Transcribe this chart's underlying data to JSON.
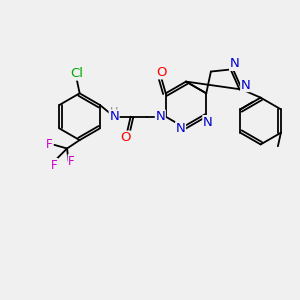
{
  "background_color": "#f0f0f0",
  "bond_color": "#000000",
  "atom_colors": {
    "N": "#0000cc",
    "O": "#ff0000",
    "Cl": "#00aa00",
    "F": "#cc00cc",
    "H": "#888888",
    "C": "#000000"
  },
  "font_size": 8.5
}
